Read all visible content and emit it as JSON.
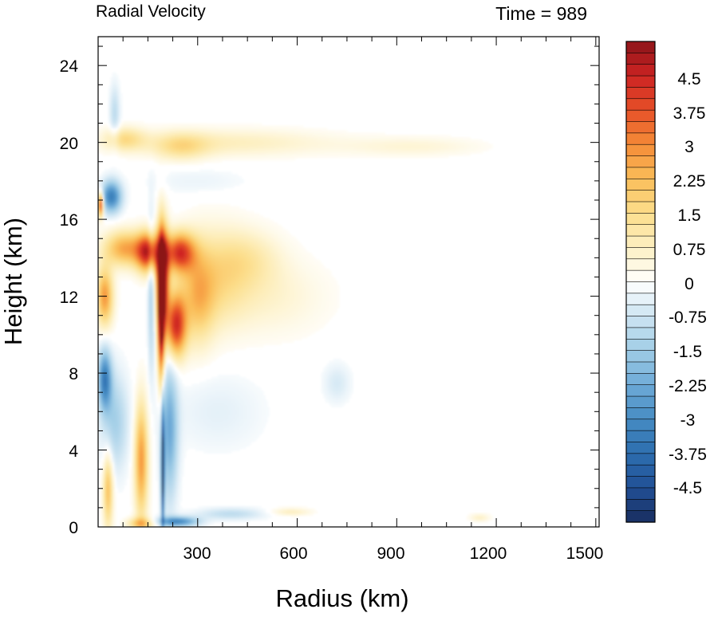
{
  "chart_data": {
    "type": "heatmap",
    "title_left": "Radial Velocity",
    "title_right": "Time = 989",
    "xlabel": "Radius (km)",
    "ylabel": "Height (km)",
    "xlim": [
      0,
      1510
    ],
    "ylim": [
      0,
      25.5
    ],
    "x_ticks": [
      300,
      600,
      900,
      1200,
      1500
    ],
    "x_tick_labels": [
      "300",
      "600",
      "900",
      "1200",
      "1500"
    ],
    "y_ticks": [
      0,
      4,
      8,
      12,
      16,
      20,
      24
    ],
    "y_tick_labels": [
      "0",
      "4",
      "8",
      "12",
      "16",
      "20",
      "24"
    ],
    "colorbar": {
      "min": -5.25,
      "max": 5.25,
      "step": 0.25,
      "tick_values": [
        4.5,
        3.75,
        3,
        2.25,
        1.5,
        0.75,
        0,
        -0.75,
        -1.5,
        -2.25,
        -3,
        -3.75,
        -4.5
      ],
      "tick_labels": [
        "4.5",
        "3.75",
        "3",
        "2.25",
        "1.5",
        "0.75",
        "0",
        "-0.75",
        "-1.5",
        "-2.25",
        "-3",
        "-3.75",
        "-4.5"
      ]
    },
    "features": [
      {
        "x": 195,
        "y": 13,
        "rx": 18,
        "ry": 2.5,
        "v": 5.2
      },
      {
        "x": 190,
        "y": 11,
        "rx": 10,
        "ry": 3.5,
        "v": 5.0
      },
      {
        "x": 150,
        "y": 14.3,
        "rx": 35,
        "ry": 1.0,
        "v": 4.3
      },
      {
        "x": 245,
        "y": 14.3,
        "rx": 45,
        "ry": 1.0,
        "v": 4.0
      },
      {
        "x": 235,
        "y": 10.5,
        "rx": 30,
        "ry": 1.6,
        "v": 4.2
      },
      {
        "x": 80,
        "y": 14.5,
        "rx": 60,
        "ry": 0.9,
        "v": 2.6
      },
      {
        "x": 20,
        "y": 12,
        "rx": 25,
        "ry": 1.5,
        "v": 2.8
      },
      {
        "x": 8,
        "y": 16.8,
        "rx": 8,
        "ry": 0.6,
        "v": 4.5
      },
      {
        "x": 300,
        "y": 12,
        "rx": 50,
        "ry": 2.5,
        "v": 1.8
      },
      {
        "x": 360,
        "y": 13,
        "rx": 90,
        "ry": 2.5,
        "v": 1.1
      },
      {
        "x": 450,
        "y": 14,
        "rx": 100,
        "ry": 1.5,
        "v": 0.9
      },
      {
        "x": 500,
        "y": 12,
        "rx": 180,
        "ry": 2.0,
        "v": 0.6
      },
      {
        "x": 400,
        "y": 20,
        "rx": 300,
        "ry": 0.7,
        "v": 0.8
      },
      {
        "x": 80,
        "y": 20.2,
        "rx": 60,
        "ry": 0.6,
        "v": 1.4
      },
      {
        "x": 250,
        "y": 19.8,
        "rx": 80,
        "ry": 0.7,
        "v": 1.2
      },
      {
        "x": 950,
        "y": 19.8,
        "rx": 200,
        "ry": 0.5,
        "v": 0.5
      },
      {
        "x": 130,
        "y": 3.5,
        "rx": 20,
        "ry": 3.0,
        "v": 2.8
      },
      {
        "x": 30,
        "y": 2.0,
        "rx": 15,
        "ry": 2.0,
        "v": 2.2
      },
      {
        "x": 130,
        "y": 0.2,
        "rx": 40,
        "ry": 0.3,
        "v": 2.0
      },
      {
        "x": 580,
        "y": 0.8,
        "rx": 60,
        "ry": 0.2,
        "v": 0.8
      },
      {
        "x": 1150,
        "y": 0.5,
        "rx": 30,
        "ry": 0.2,
        "v": 0.7
      },
      {
        "x": 20,
        "y": 7.7,
        "rx": 20,
        "ry": 1.5,
        "v": -3.2
      },
      {
        "x": 40,
        "y": 17.2,
        "rx": 30,
        "ry": 0.8,
        "v": -3.3
      },
      {
        "x": 195,
        "y": 3.0,
        "rx": 5,
        "ry": 3.0,
        "v": -5.2
      },
      {
        "x": 215,
        "y": 5.0,
        "rx": 25,
        "ry": 3.5,
        "v": -2.2
      },
      {
        "x": 240,
        "y": 0.3,
        "rx": 60,
        "ry": 0.25,
        "v": -3.0
      },
      {
        "x": 400,
        "y": 0.7,
        "rx": 100,
        "ry": 0.3,
        "v": -1.0
      },
      {
        "x": 50,
        "y": 5.5,
        "rx": 40,
        "ry": 2.5,
        "v": -1.4
      },
      {
        "x": 360,
        "y": 6.0,
        "rx": 140,
        "ry": 2.0,
        "v": -0.4
      },
      {
        "x": 160,
        "y": 12,
        "rx": 10,
        "ry": 4.0,
        "v": -1.3
      },
      {
        "x": 50,
        "y": 21.5,
        "rx": 15,
        "ry": 1.5,
        "v": -1.0
      },
      {
        "x": 300,
        "y": 18,
        "rx": 150,
        "ry": 0.7,
        "v": -0.3
      },
      {
        "x": 720,
        "y": 7.5,
        "rx": 40,
        "ry": 1.0,
        "v": -0.6
      }
    ]
  }
}
